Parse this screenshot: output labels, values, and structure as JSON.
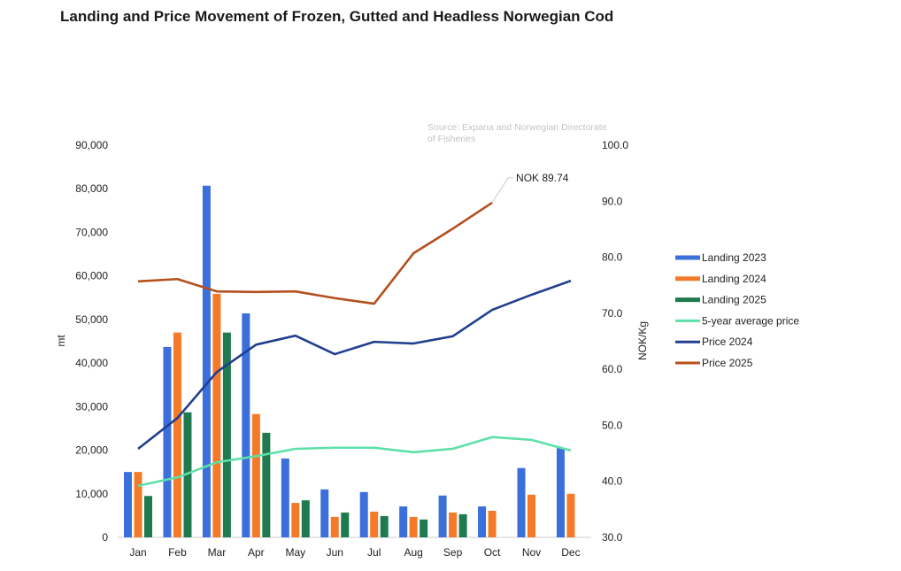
{
  "chart_data": {
    "type": "bar+line",
    "title": "Landing and Price Movement of Frozen, Gutted and Headless Norwegian Cod",
    "source": "Source: Expana and Norwegian Directorate of Fisheries",
    "source_lines": [
      "Source: Expana and Norwegian Directorate",
      "of Fisheries"
    ],
    "categories": [
      "Jan",
      "Feb",
      "Mar",
      "Apr",
      "May",
      "Jun",
      "Jul",
      "Aug",
      "Sep",
      "Oct",
      "Nov",
      "Dec"
    ],
    "ylabel_left": "mt",
    "ylabel_right": "NOK/Kg",
    "ylim_left": [
      0,
      90000
    ],
    "ylim_right": [
      30,
      100
    ],
    "left_ticks": [
      "0",
      "10,000",
      "20,000",
      "30,000",
      "40,000",
      "50,000",
      "60,000",
      "70,000",
      "80,000",
      "90,000"
    ],
    "right_ticks": [
      "30.0",
      "40.0",
      "50.0",
      "60.0",
      "70.0",
      "80.0",
      "90.0",
      "100.0"
    ],
    "bar_series": [
      {
        "name": "Landing 2023",
        "color": "#3b6fdc",
        "values": [
          15000,
          43700,
          80700,
          51400,
          18100,
          11000,
          10400,
          7100,
          9600,
          7100,
          15900,
          20500
        ]
      },
      {
        "name": "Landing 2024",
        "color": "#f47a2a",
        "values": [
          15000,
          47000,
          55900,
          28300,
          7900,
          4700,
          5900,
          4700,
          5700,
          6100,
          9800,
          10000
        ]
      },
      {
        "name": "Landing 2025",
        "color": "#1f7a4f",
        "values": [
          9500,
          28700,
          47000,
          24000,
          8500,
          5700,
          4900,
          4100,
          5300,
          null,
          null,
          null
        ]
      }
    ],
    "line_series": [
      {
        "name": "5-year average price",
        "color": "#5ee0a8",
        "values": [
          39.2,
          40.7,
          43.4,
          44.5,
          45.8,
          46.0,
          46.0,
          45.2,
          45.8,
          47.9,
          47.4,
          45.5
        ]
      },
      {
        "name": "Price 2024",
        "color": "#1f3f8f",
        "values": [
          45.8,
          51.3,
          59.5,
          64.4,
          66.0,
          62.7,
          64.9,
          64.6,
          65.9,
          70.6,
          73.3,
          75.8
        ]
      },
      {
        "name": "Price 2025",
        "color": "#b5501f",
        "values": [
          75.7,
          76.1,
          73.9,
          73.8,
          73.9,
          72.7,
          71.7,
          80.7,
          85.1,
          89.74,
          null,
          null
        ]
      }
    ],
    "annotation": "NOK 89.74",
    "legend_position": "right",
    "grid": false
  }
}
